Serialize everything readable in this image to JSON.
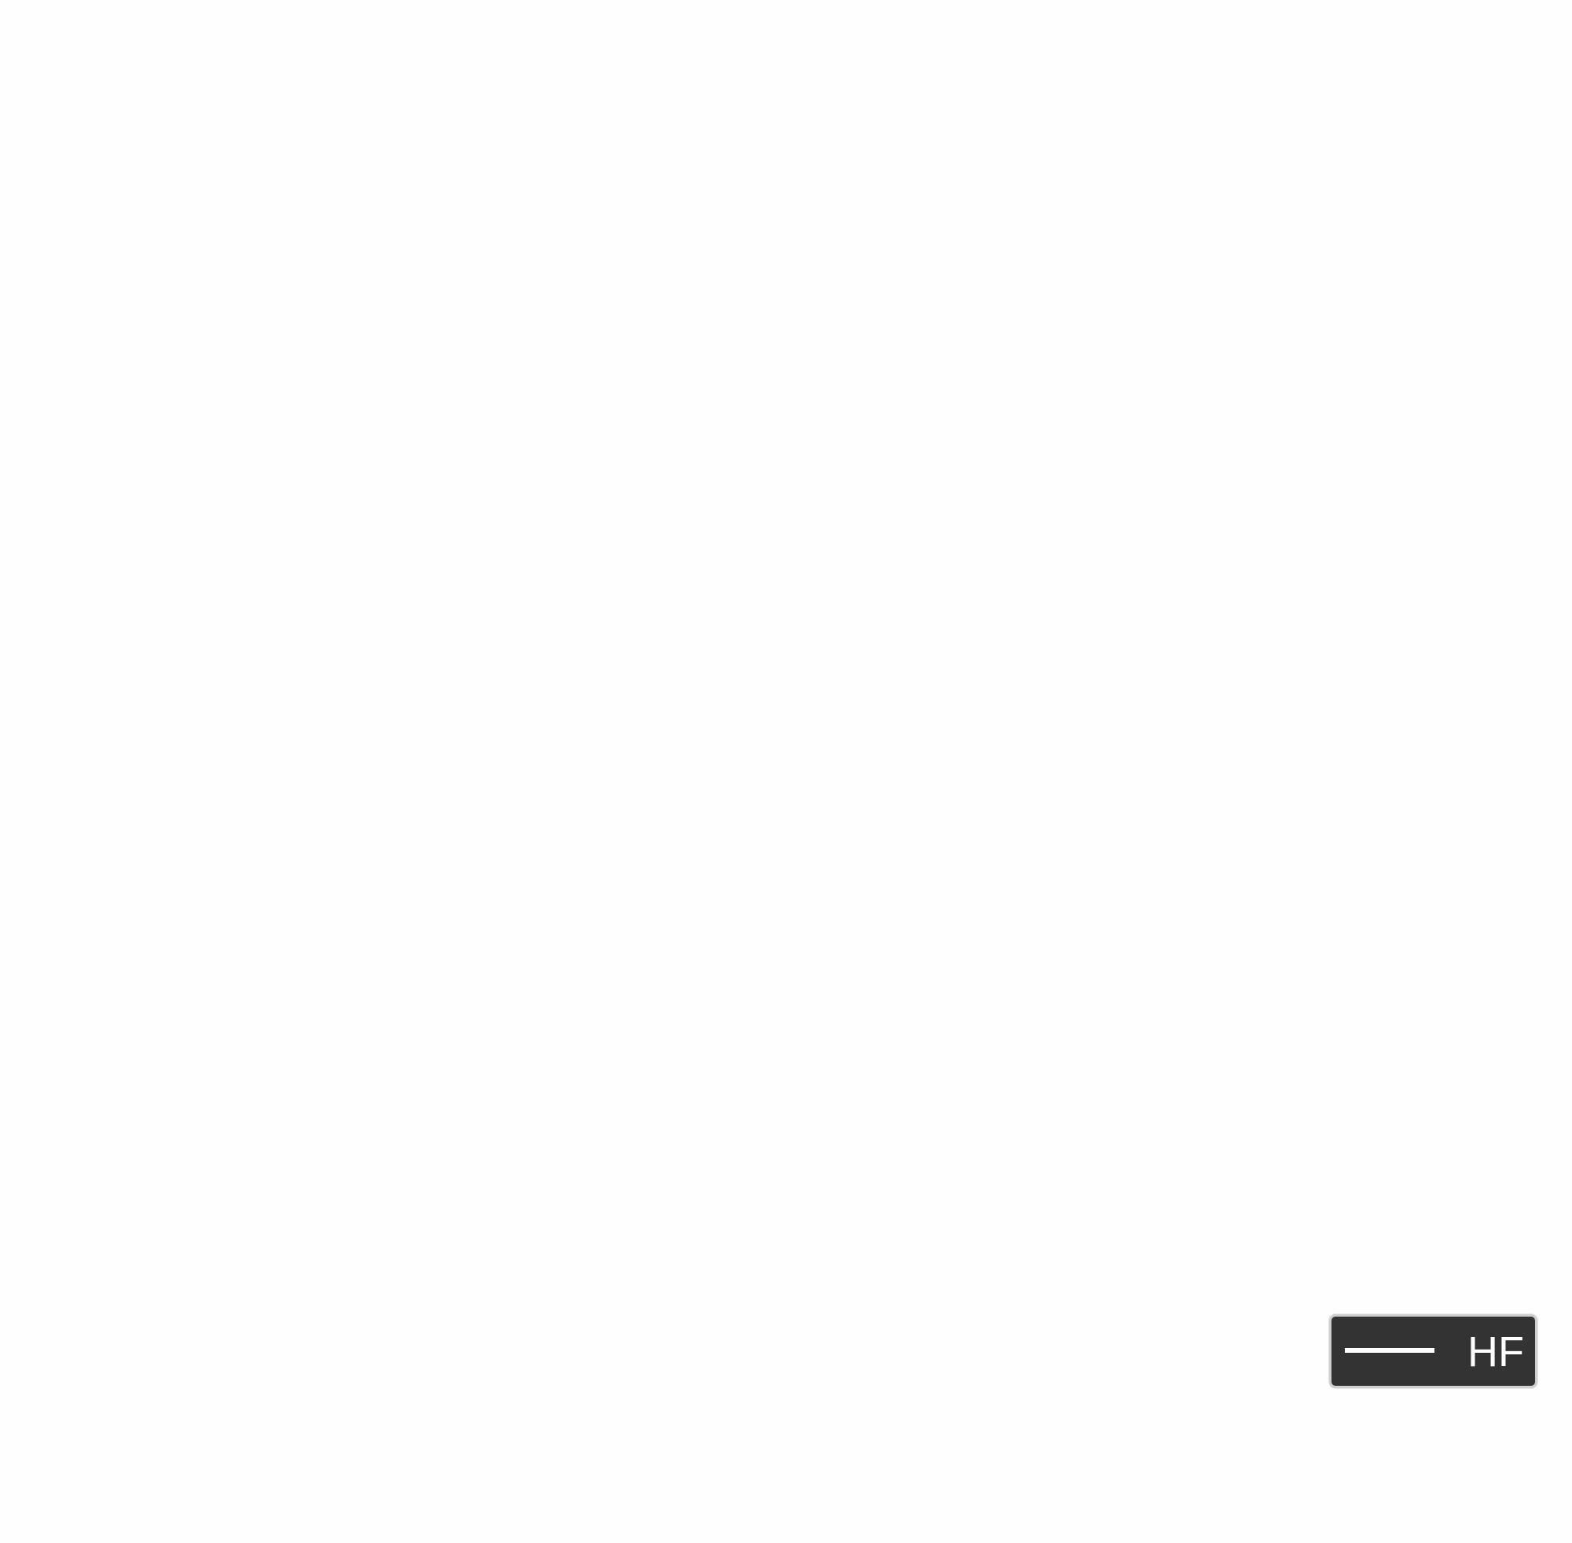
{
  "chart_data": {
    "type": "line",
    "title": "",
    "xlabel": "",
    "ylabel": "",
    "grid": false,
    "legend": {
      "placement": "bottom-right",
      "background": "#333333",
      "entries": [
        {
          "label": "HF",
          "color": "#ffffff"
        }
      ]
    },
    "series": [
      {
        "name": "HF",
        "color": "#ffffff",
        "x": [],
        "y": []
      }
    ]
  }
}
